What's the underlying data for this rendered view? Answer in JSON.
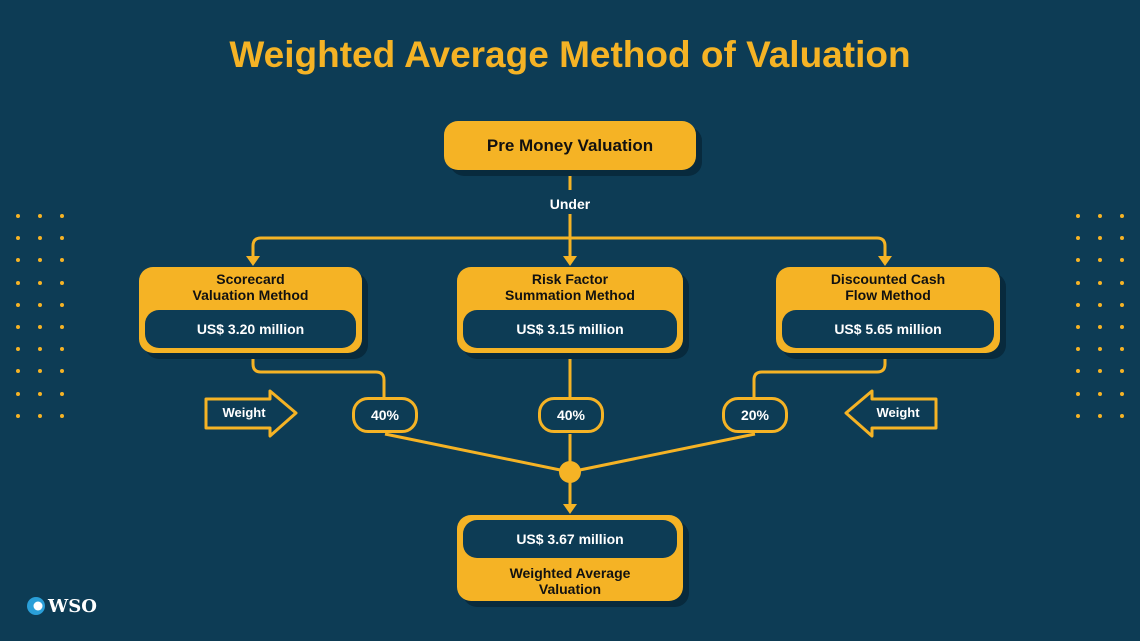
{
  "title": "Weighted Average Method of Valuation",
  "top": {
    "label": "Pre Money Valuation",
    "connector": "Under"
  },
  "methods": [
    {
      "title_line1": "Scorecard",
      "title_line2": "Valuation Method",
      "value": "US$ 3.20 million",
      "weight": "40%"
    },
    {
      "title_line1": "Risk Factor",
      "title_line2": "Summation Method",
      "value": "US$ 3.15 million",
      "weight": "40%"
    },
    {
      "title_line1": "Discounted Cash",
      "title_line2": "Flow Method",
      "value": "US$ 5.65 million",
      "weight": "20%"
    }
  ],
  "weight_labels": {
    "left": "Weight",
    "right": "Weight"
  },
  "result": {
    "value": "US$ 3.67 million",
    "label_line1": "Weighted Average",
    "label_line2": "Valuation"
  },
  "logo": {
    "text": "WSO"
  },
  "colors": {
    "background": "#0d3c55",
    "accent": "#f5b325",
    "shadow": "#082a3d"
  }
}
